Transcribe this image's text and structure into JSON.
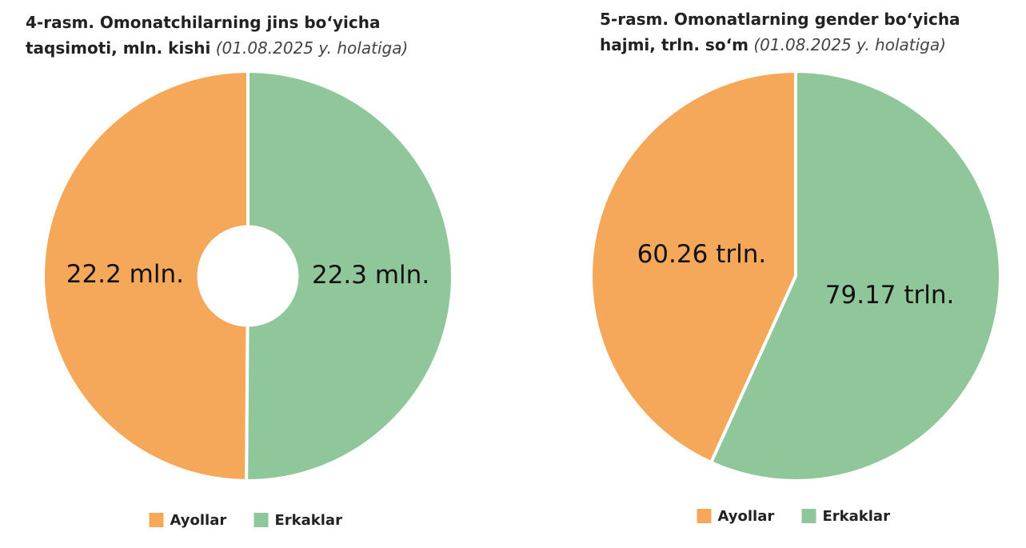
{
  "chart_data": [
    {
      "type": "donut",
      "title": "4-rasm. Omonatchilarning jins bo‘yicha taqsimoti, mln. kishi",
      "subtitle": "(01.08.2025 y. holatiga)",
      "categories": [
        "Ayollar",
        "Erkaklar"
      ],
      "values": [
        22.2,
        22.3
      ],
      "value_labels": [
        "22.2 mln.",
        "22.3 mln."
      ],
      "colors": [
        "#f5a85a",
        "#8fc79a"
      ],
      "legend": "bottom"
    },
    {
      "type": "pie",
      "title": "5-rasm. Omonatlarning gender bo‘yicha hajmi, trln. so‘m",
      "subtitle": "(01.08.2025 y. holatiga)",
      "categories": [
        "Ayollar",
        "Erkaklar"
      ],
      "values": [
        60.26,
        79.17
      ],
      "value_labels": [
        "60.26 trln.",
        "79.17 trln."
      ],
      "colors": [
        "#f5a85a",
        "#8fc79a"
      ],
      "legend": "bottom"
    }
  ]
}
